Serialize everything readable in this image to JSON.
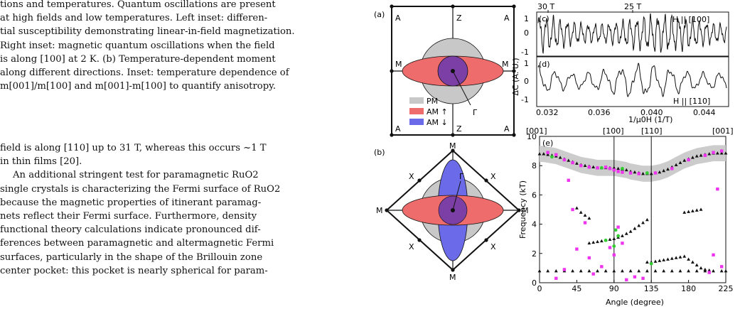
{
  "caption_lines": [
    "tions and temperatures.  Quantum oscillations are present",
    "at high fields and low temperatures.  Left inset: differen-",
    "tial susceptibility demonstrating linear-in-field magnetization.",
    "Right inset:  magnetic quantum oscillations when the field",
    "is along [100] at 2 K. (b) Temperature-dependent moment",
    "along different directions.  Inset: temperature dependence of",
    "m[001]/m[100] and m[001]-m[100] to quantify anisotropy."
  ],
  "body_lines": [
    "field is along [110] up to 31 T, whereas this occurs ~1 T",
    "in thin films [20].",
    "An additional stringent test for paramagnetic RuO2",
    "single crystals is characterizing the Fermi surface of RuO2",
    "because the magnetic properties of itinerant paramag-",
    "nets reflect their Fermi surface.  Furthermore, density",
    "functional theory calculations indicate pronounced dif-",
    "ferences between paramagnetic and altermagnetic Fermi",
    "surfaces, particularly in the shape of the Brillouin zone",
    "center pocket: this pocket is nearly spherical for param-"
  ],
  "panel_a": {
    "label": "(a)",
    "corners": [
      "A",
      "A",
      "A",
      "A"
    ],
    "edges": [
      "Z",
      "Z",
      "M",
      "M"
    ],
    "gamma": "Γ",
    "legend": [
      "PM",
      "AM ↑",
      "AM ↓"
    ],
    "colors": {
      "pm": "#c8c8c8",
      "up": "#ee6c6c",
      "down": "#6b6bea",
      "overlap": "#7b3fa6"
    }
  },
  "panel_b": {
    "label": "(b)",
    "vertices": [
      "M",
      "M",
      "M",
      "M"
    ],
    "edge_points": [
      "X",
      "X",
      "X",
      "X"
    ],
    "gamma": "Γ"
  },
  "panel_c": {
    "label": "(c)",
    "field_labels": [
      "30 T",
      "25 T"
    ],
    "direction": "H || [100]"
  },
  "panel_d": {
    "label": "(d)",
    "direction": "H || [110]",
    "ylabel": "ΔC (A. U.)",
    "xlabel": "1/μ0H (1/T)",
    "yticks": [
      "1",
      "0",
      "-1"
    ],
    "xticks": [
      "0.032",
      "0.036",
      "0.040",
      "0.044"
    ]
  },
  "panel_e": {
    "label": "(e)",
    "ylabel": "Frequency (kT)",
    "xlabel": "Angle (degree)",
    "top_labels": [
      "[001]",
      "[100]",
      "[110]",
      "[001]"
    ],
    "colors": {
      "black": "#111111",
      "magenta": "#ee33ee",
      "green": "#33cc33",
      "band": "#cccccc"
    }
  },
  "chart_data": [
    {
      "type": "line",
      "panel": "(c)",
      "x_range": [
        0.032,
        0.045
      ],
      "ylim": [
        -1,
        1
      ],
      "note": "H || [100]"
    },
    {
      "type": "line",
      "panel": "(d)",
      "xlabel": "1/μ0H (1/T)",
      "ylabel": "ΔC (A. U.)",
      "x_range": [
        0.032,
        0.045
      ],
      "ylim": [
        -1,
        1
      ],
      "xticks": [
        0.032,
        0.036,
        0.04,
        0.044
      ],
      "note": "H || [110]"
    },
    {
      "type": "scatter",
      "panel": "(e)",
      "xlabel": "Angle (degree)",
      "ylabel": "Frequency (kT)",
      "xlim": [
        0,
        225
      ],
      "ylim": [
        0,
        10
      ],
      "xticks": [
        0,
        45,
        90,
        135,
        180,
        225
      ],
      "yticks": [
        0,
        2,
        4,
        6,
        8,
        10
      ],
      "vertical_lines": [
        90,
        135
      ],
      "series": [
        {
          "marker": "triangle",
          "color": "#111111",
          "branch": "alpha",
          "x": [
            0,
            5,
            10,
            15,
            20,
            25,
            30,
            35,
            40,
            45,
            50,
            55,
            60,
            65,
            70,
            75,
            80,
            85,
            90,
            95,
            100,
            105,
            110,
            115,
            120,
            125,
            130,
            135,
            140,
            145,
            150,
            155,
            160,
            165,
            170,
            175,
            180,
            185,
            190,
            195,
            200,
            205,
            210,
            215,
            220,
            225
          ],
          "y": [
            8.8,
            8.8,
            8.75,
            8.7,
            8.65,
            8.55,
            8.45,
            8.35,
            8.25,
            8.15,
            8.05,
            8.0,
            7.95,
            7.9,
            7.85,
            7.85,
            7.85,
            7.85,
            7.85,
            7.8,
            7.75,
            7.7,
            7.6,
            7.55,
            7.5,
            7.45,
            7.45,
            7.45,
            7.5,
            7.55,
            7.65,
            7.75,
            7.9,
            8.05,
            8.2,
            8.35,
            8.45,
            8.55,
            8.65,
            8.7,
            8.75,
            8.8,
            8.85,
            8.85,
            8.85,
            8.85
          ]
        },
        {
          "marker": "triangle",
          "color": "#111111",
          "branch": "low",
          "x": [
            0,
            10,
            20,
            30,
            40,
            50,
            60,
            70,
            80,
            90,
            100,
            110,
            120,
            130,
            140,
            150,
            160,
            170,
            180,
            190,
            200,
            210,
            220,
            225
          ],
          "y": [
            0.8,
            0.8,
            0.8,
            0.8,
            0.8,
            0.8,
            0.8,
            0.8,
            0.8,
            0.8,
            0.8,
            0.8,
            0.8,
            0.8,
            0.8,
            0.8,
            0.8,
            0.8,
            0.8,
            0.8,
            0.8,
            0.8,
            0.8,
            0.8
          ]
        },
        {
          "marker": "triangle",
          "color": "#111111",
          "branch": "mid",
          "x": [
            60,
            65,
            70,
            75,
            80,
            85,
            90,
            95,
            100,
            105,
            110,
            115,
            120,
            125,
            130
          ],
          "y": [
            2.7,
            2.75,
            2.8,
            2.85,
            2.9,
            2.95,
            3.0,
            3.1,
            3.2,
            3.35,
            3.5,
            3.7,
            3.9,
            4.1,
            4.3
          ]
        },
        {
          "marker": "triangle",
          "color": "#111111",
          "branch": "upper",
          "x": [
            45,
            50,
            55,
            60,
            175,
            180,
            185,
            190,
            195
          ],
          "y": [
            5.1,
            4.8,
            4.6,
            4.4,
            4.8,
            4.85,
            4.9,
            4.95,
            5.0
          ]
        },
        {
          "marker": "triangle",
          "color": "#111111",
          "branch": "near-135",
          "x": [
            130,
            135,
            140,
            145,
            150,
            155,
            160,
            165,
            170,
            175,
            180,
            185,
            190,
            195,
            200,
            205
          ],
          "y": [
            1.4,
            1.4,
            1.45,
            1.5,
            1.55,
            1.6,
            1.65,
            1.7,
            1.75,
            1.8,
            1.6,
            1.4,
            1.2,
            1.0,
            0.9,
            0.85
          ]
        },
        {
          "marker": "square",
          "color": "#ee33ee",
          "x": [
            10,
            20,
            30,
            40,
            50,
            60,
            70,
            80,
            85,
            90,
            95,
            100,
            110,
            120,
            140,
            160,
            180,
            200,
            210,
            220
          ],
          "y": [
            8.9,
            8.75,
            8.4,
            8.2,
            8.0,
            7.9,
            7.85,
            7.9,
            7.8,
            7.7,
            7.6,
            7.55,
            7.5,
            7.45,
            7.5,
            7.8,
            8.4,
            8.7,
            8.9,
            9.0
          ]
        },
        {
          "marker": "square",
          "color": "#ee33ee",
          "x": [
            20,
            30,
            35,
            40,
            45,
            55,
            60,
            65,
            75,
            85,
            90,
            95,
            100,
            105,
            115,
            125,
            205,
            210,
            215,
            220
          ],
          "y": [
            0.3,
            0.9,
            7.0,
            5.0,
            2.3,
            4.1,
            1.7,
            0.6,
            1.1,
            2.4,
            1.9,
            3.8,
            2.7,
            0.2,
            0.4,
            0.3,
            0.7,
            1.9,
            6.4,
            1.1
          ]
        },
        {
          "marker": "circle",
          "color": "#33cc33",
          "x": [
            15,
            75,
            80,
            90,
            92,
            95,
            100,
            130,
            135
          ],
          "y": [
            8.6,
            7.85,
            2.9,
            2.5,
            3.6,
            3.2,
            7.8,
            7.5,
            1.3
          ]
        }
      ]
    }
  ]
}
